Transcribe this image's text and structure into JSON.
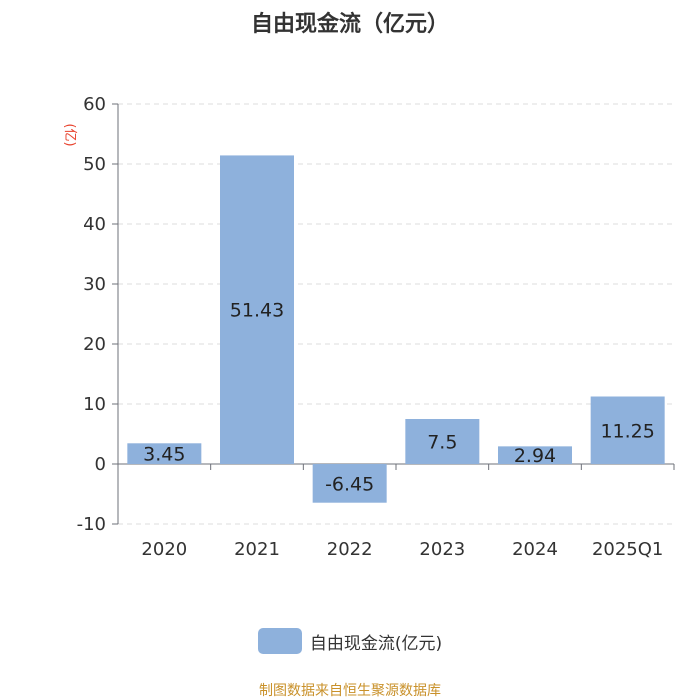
{
  "title": "自由现金流（亿元）",
  "unit_label": "(亿)",
  "legend_label": "自由现金流(亿元)",
  "source": "制图数据来自恒生聚源数据库",
  "colors": {
    "bar": "#8eb1dc",
    "unit": "#e8412c",
    "source": "#c9912a"
  },
  "chart_data": {
    "type": "bar",
    "title": "自由现金流（亿元）",
    "ylabel": "(亿)",
    "categories": [
      "2020",
      "2021",
      "2022",
      "2023",
      "2024",
      "2025Q1"
    ],
    "series": [
      {
        "name": "自由现金流(亿元)",
        "values": [
          3.45,
          51.43,
          -6.45,
          7.5,
          2.94,
          11.25
        ]
      }
    ],
    "data_labels": [
      "3.45",
      "51.43",
      "-6.45",
      "7.5",
      "2.94",
      "11.25"
    ],
    "ylim": [
      -10,
      60
    ],
    "yticks": [
      -10,
      0,
      10,
      20,
      30,
      40,
      50,
      60
    ],
    "grid": true,
    "legend": "bottom"
  }
}
